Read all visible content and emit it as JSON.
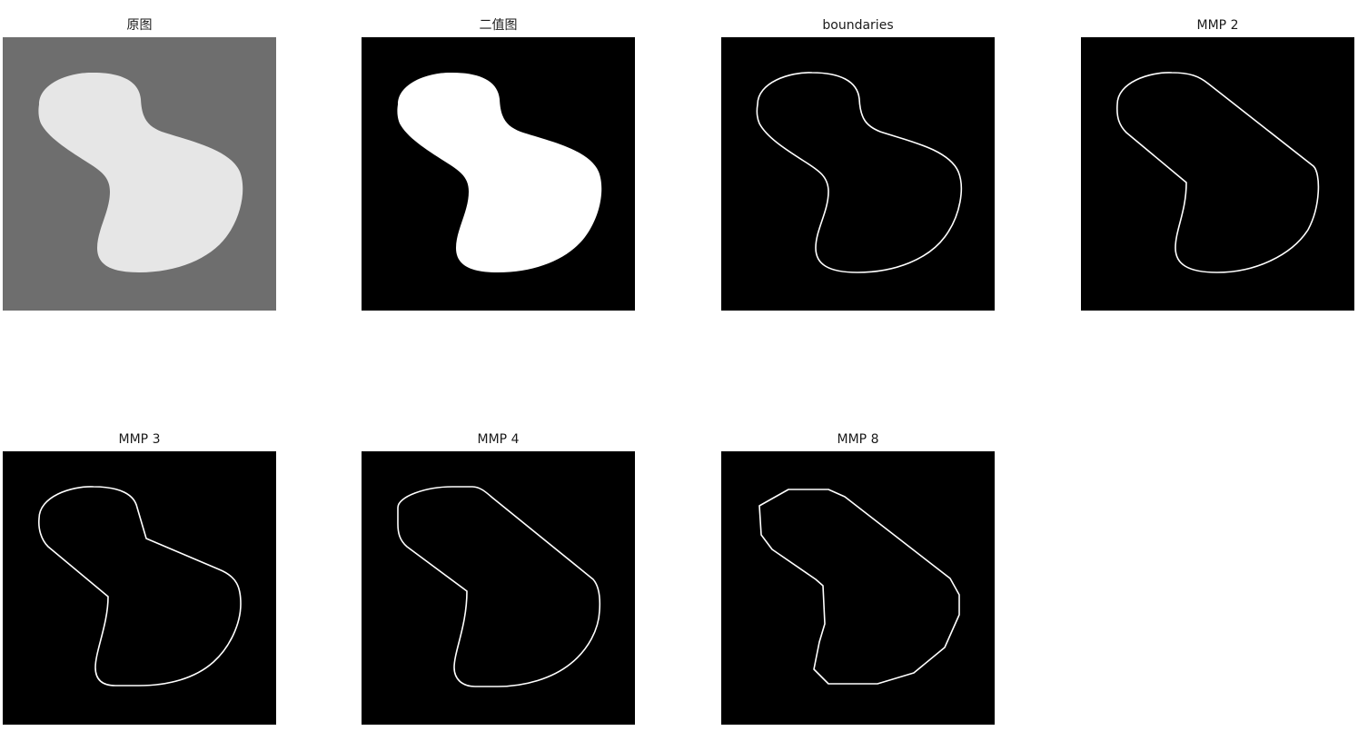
{
  "figure": {
    "panels": [
      {
        "id": "original",
        "title": "原图",
        "background": "#6e6e6e",
        "fill": "#e6e6e6",
        "mode": "fill",
        "shape": "smooth"
      },
      {
        "id": "binary",
        "title": "二值图",
        "background": "#000000",
        "fill": "#ffffff",
        "mode": "fill",
        "shape": "smooth"
      },
      {
        "id": "boundaries",
        "title": "boundaries",
        "background": "#000000",
        "stroke": "#ffffff",
        "mode": "outline",
        "shape": "smooth"
      },
      {
        "id": "mmp2",
        "title": "MMP 2",
        "background": "#000000",
        "stroke": "#ffffff",
        "mode": "outline",
        "shape": "mmp2"
      },
      {
        "id": "mmp3",
        "title": "MMP 3",
        "background": "#000000",
        "stroke": "#ffffff",
        "mode": "outline",
        "shape": "mmp3"
      },
      {
        "id": "mmp4",
        "title": "MMP 4",
        "background": "#000000",
        "stroke": "#ffffff",
        "mode": "outline",
        "shape": "mmp4"
      },
      {
        "id": "mmp8",
        "title": "MMP 8",
        "background": "#000000",
        "stroke": "#ffffff",
        "mode": "outline",
        "shape": "mmp8"
      }
    ]
  }
}
